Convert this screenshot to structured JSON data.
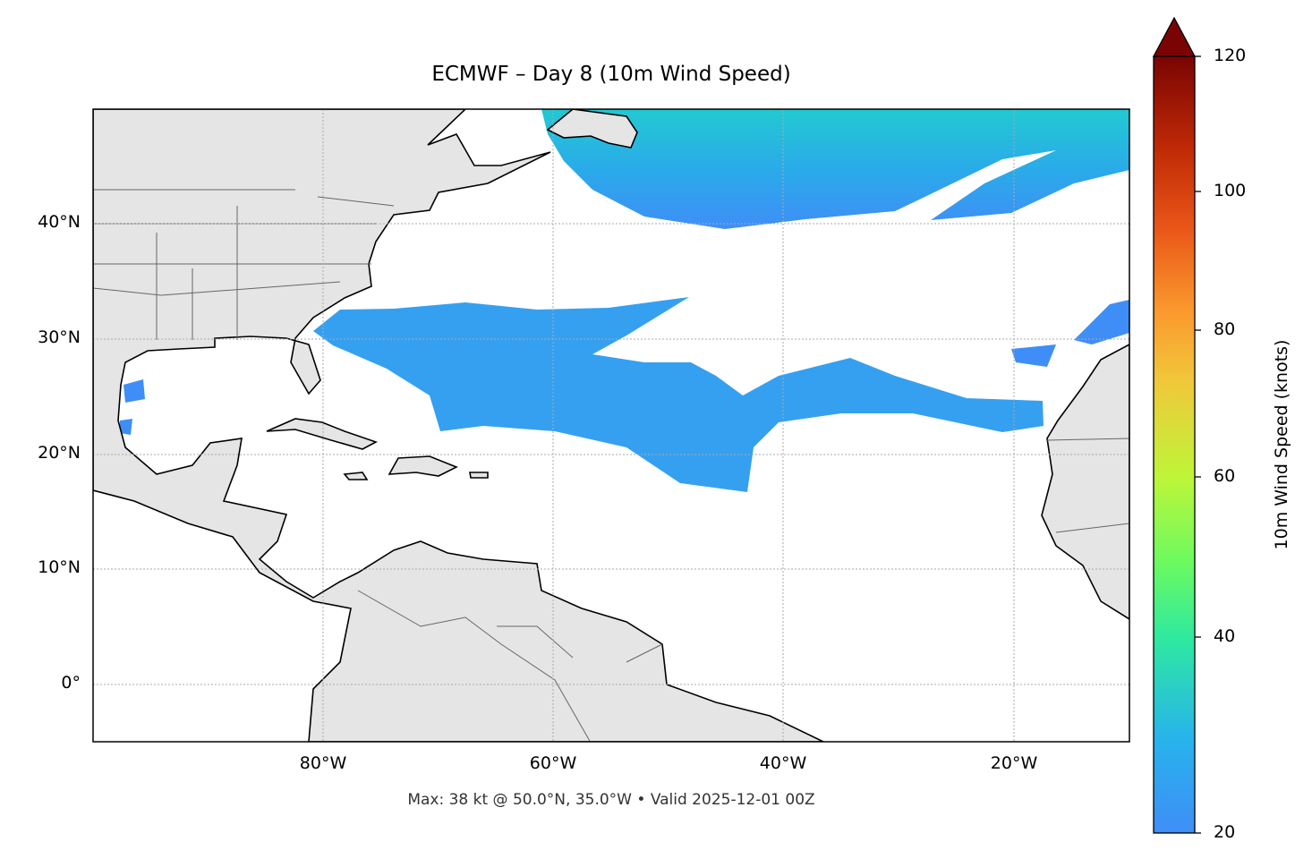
{
  "title": "ECMWF – Day 8 (10m Wind Speed)",
  "footer": "Max: 38 kt @ 50.0°N, 35.0°W • Valid 2025-12-01 00Z",
  "map": {
    "extent": {
      "lon_min": -100,
      "lon_max": -10,
      "lat_min": -5,
      "lat_max": 50
    },
    "lat_labels": [
      "40°N",
      "30°N",
      "20°N",
      "10°N",
      "0°"
    ],
    "lon_labels": [
      "80°W",
      "60°W",
      "40°W",
      "20°W"
    ],
    "gridlines": true,
    "land_color": "#e5e5e5",
    "ocean_color": "#ffffff",
    "wind_color_low": "#3f8ef7",
    "wind_color_mid": "#27b3ec",
    "wind_color_core": "#1fd0c8"
  },
  "colorbar": {
    "label": "10m Wind Speed (knots)",
    "ticks": [
      "20",
      "40",
      "60",
      "80",
      "100",
      "120"
    ],
    "extend": "max",
    "colormap": "turbo"
  }
}
